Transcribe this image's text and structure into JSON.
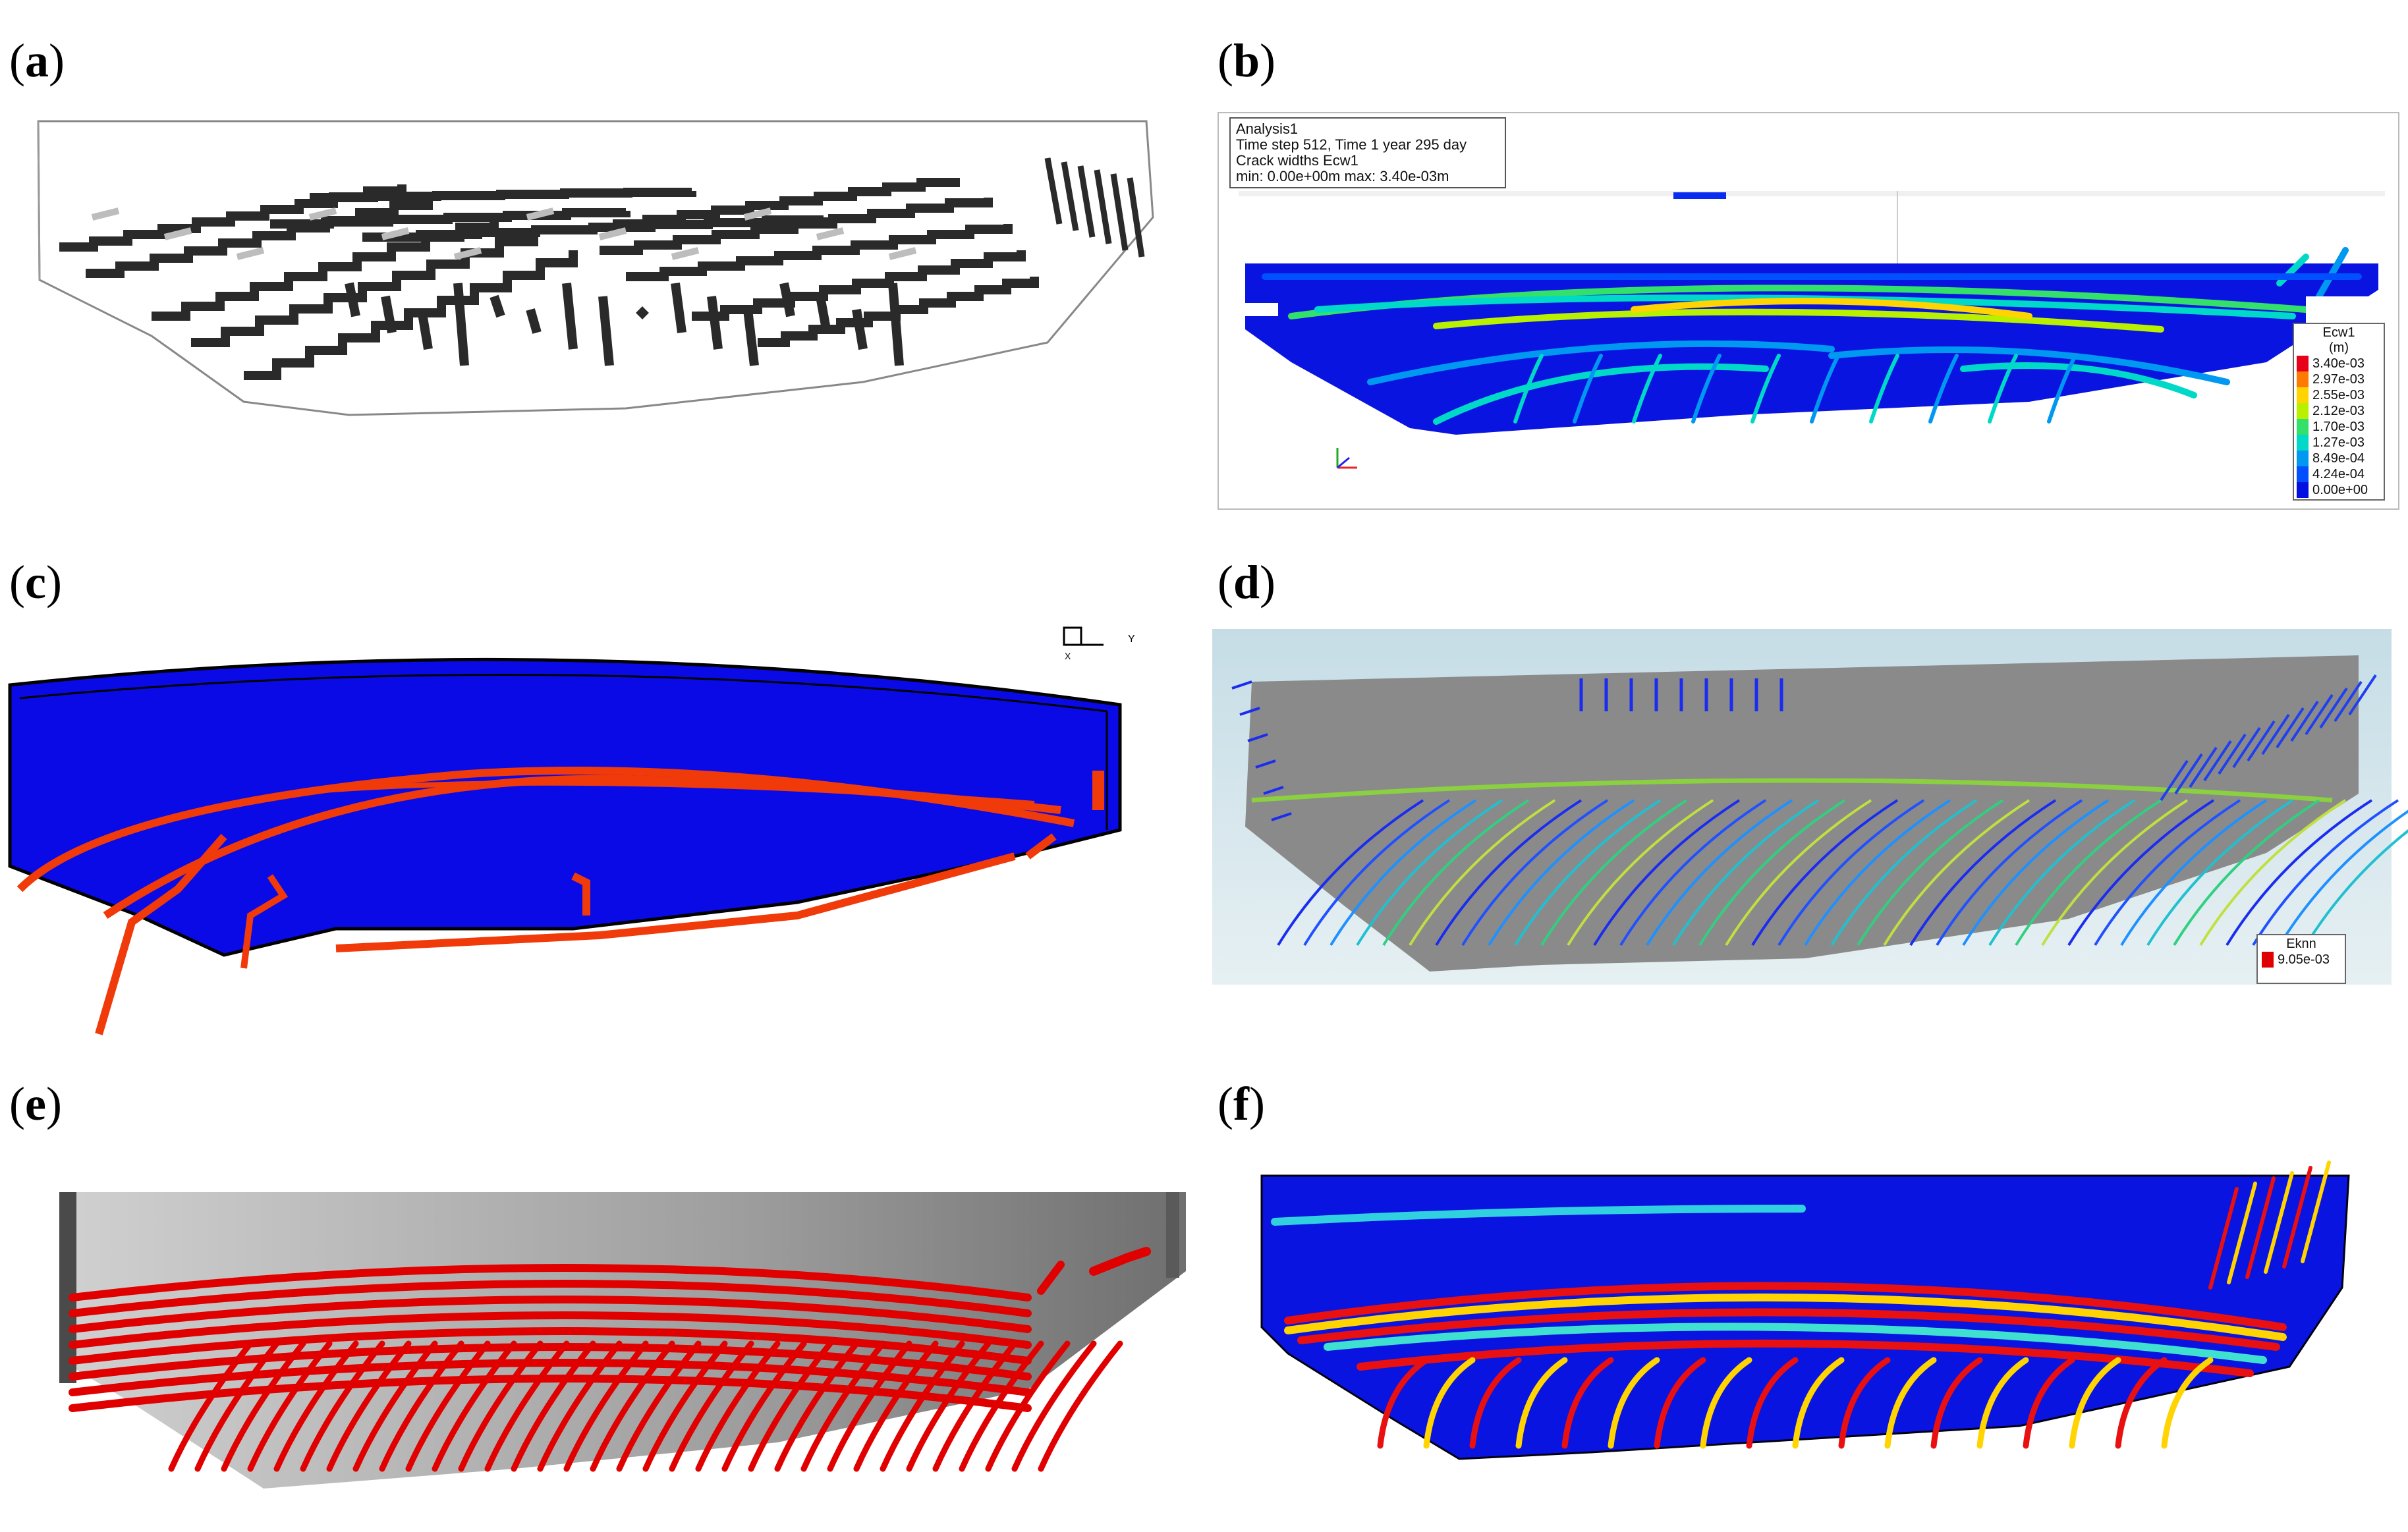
{
  "panels": {
    "a": {
      "open": "(",
      "letter": "a",
      "close": ")"
    },
    "b": {
      "open": "(",
      "letter": "b",
      "close": ")"
    },
    "c": {
      "open": "(",
      "letter": "c",
      "close": ")"
    },
    "d": {
      "open": "(",
      "letter": "d",
      "close": ")"
    },
    "e": {
      "open": "(",
      "letter": "e",
      "close": ")"
    },
    "f": {
      "open": "(",
      "letter": "f",
      "close": ")"
    }
  },
  "panel_b": {
    "info": [
      "Analysis1",
      "Time step 512, Time 1 year 295 day",
      "Crack widths Ecw1",
      "min: 0.00e+00m max: 3.40e-03m"
    ],
    "legend_title": "Ecw1",
    "legend_unit": "(m)",
    "legend_values": [
      "3.40e-03",
      "2.97e-03",
      "2.55e-03",
      "2.12e-03",
      "1.70e-03",
      "1.27e-03",
      "8.49e-04",
      "4.24e-04",
      "0.00e+00"
    ],
    "legend_colors": [
      "#e8001a",
      "#ff7a00",
      "#ffd400",
      "#b8f000",
      "#33e06a",
      "#00d8c8",
      "#0098f0",
      "#0050ff",
      "#0010e0"
    ]
  },
  "panel_c": {
    "axis_label": "Y",
    "axis_sub": "X"
  },
  "panel_d": {
    "legend_title": "Eknn",
    "legend_value": "9.05e-03",
    "legend_color": "#e00000"
  },
  "colors": {
    "dam_blue": "#0a0ae6",
    "crack_red": "#e80000",
    "grey": "#9e9e9e"
  }
}
